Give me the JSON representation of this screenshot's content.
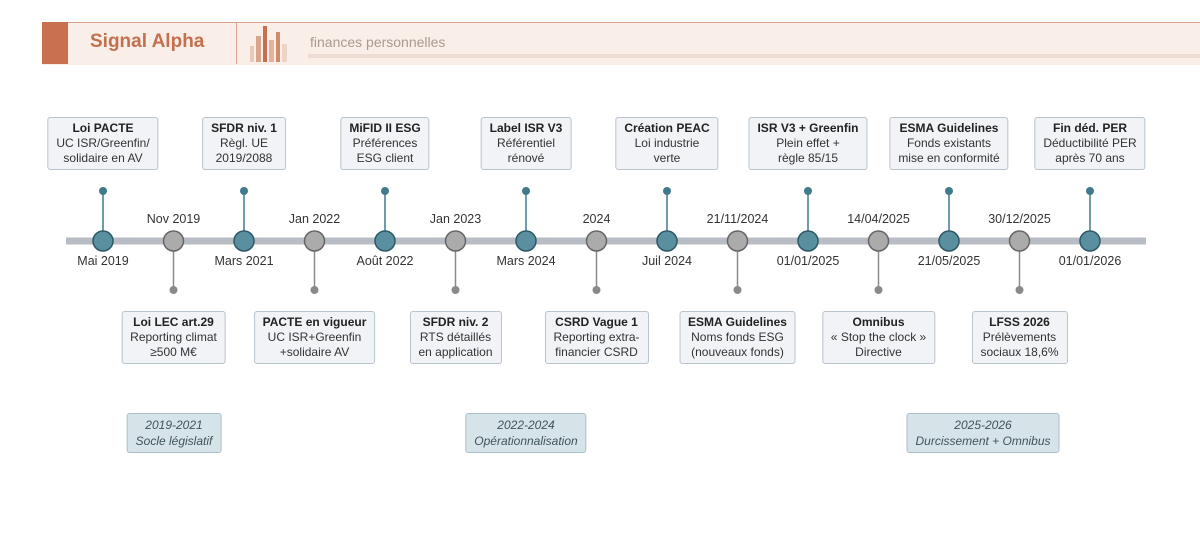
{
  "header": {
    "title": "Signal Alpha",
    "subtitle": "finances personnelles"
  },
  "events": [
    {
      "date": "Mai 2019",
      "title": "Loi PACTE",
      "lines": [
        "UC ISR/Greenfin/",
        "solidaire en AV"
      ]
    },
    {
      "date": "Nov 2019",
      "title": "Loi LEC art.29",
      "lines": [
        "Reporting climat",
        "≥500 M€"
      ]
    },
    {
      "date": "Mars 2021",
      "title": "SFDR niv. 1",
      "lines": [
        "Règl. UE",
        "2019/2088"
      ]
    },
    {
      "date": "Jan 2022",
      "title": "PACTE en vigueur",
      "lines": [
        "UC ISR+Greenfin",
        "+solidaire AV"
      ]
    },
    {
      "date": "Août 2022",
      "title": "MiFID II ESG",
      "lines": [
        "Préférences",
        "ESG client"
      ]
    },
    {
      "date": "Jan 2023",
      "title": "SFDR niv. 2",
      "lines": [
        "RTS détaillés",
        "en application"
      ]
    },
    {
      "date": "Mars 2024",
      "title": "Label ISR V3",
      "lines": [
        "Référentiel",
        "rénové"
      ]
    },
    {
      "date": "2024",
      "title": "CSRD Vague 1",
      "lines": [
        "Reporting extra-",
        "financier CSRD"
      ]
    },
    {
      "date": "Juil 2024",
      "title": "Création PEAC",
      "lines": [
        "Loi industrie",
        "verte"
      ]
    },
    {
      "date": "21/11/2024",
      "title": "ESMA Guidelines",
      "lines": [
        "Noms fonds ESG",
        "(nouveaux fonds)"
      ]
    },
    {
      "date": "01/01/2025",
      "title": "ISR V3 + Greenfin",
      "lines": [
        "Plein effet +",
        "règle 85/15"
      ]
    },
    {
      "date": "14/04/2025",
      "title": "Omnibus",
      "lines": [
        "« Stop the clock »",
        "Directive"
      ]
    },
    {
      "date": "21/05/2025",
      "title": "ESMA Guidelines",
      "lines": [
        "Fonds existants",
        "mise en conformité"
      ]
    },
    {
      "date": "30/12/2025",
      "title": "LFSS 2026",
      "lines": [
        "Prélèvements",
        "sociaux 18,6%"
      ]
    },
    {
      "date": "01/01/2026",
      "title": "Fin déd. PER",
      "lines": [
        "Déductibilité PER",
        "après 70 ans"
      ]
    }
  ],
  "periods": [
    {
      "years": "2019-2021",
      "label": "Socle législatif"
    },
    {
      "years": "2022-2024",
      "label": "Opérationnalisation"
    },
    {
      "years": "2025-2026",
      "label": "Durcissement + Omnibus"
    }
  ]
}
